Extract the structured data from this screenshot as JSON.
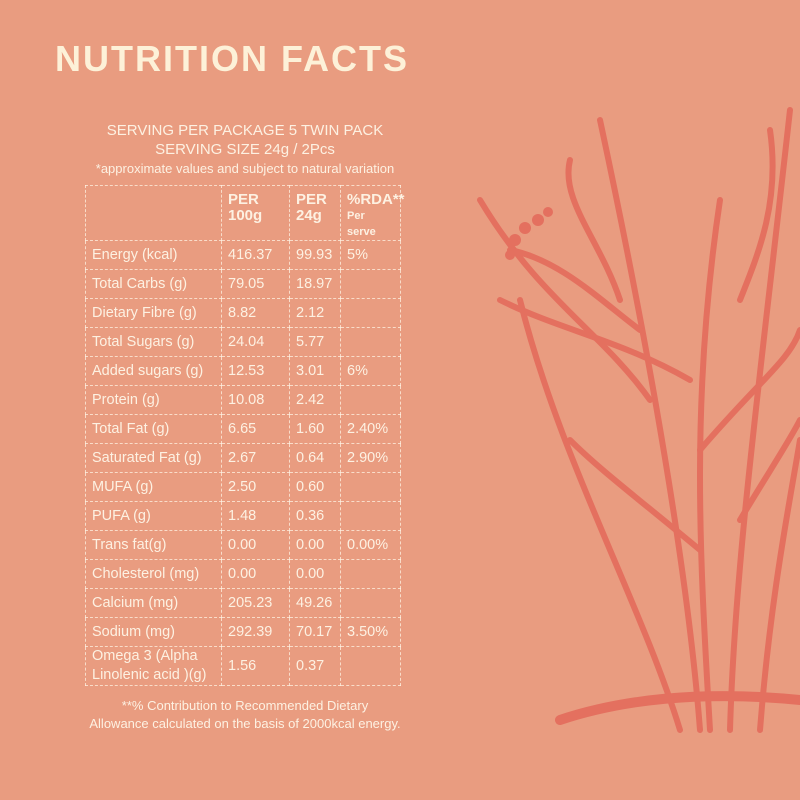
{
  "header": {
    "title": "NUTRITION FACTS",
    "serving_per_package": "SERVING PER PACKAGE 5 TWIN PACK",
    "serving_size": "SERVING SIZE 24g / 2Pcs",
    "note": "*approximate values and subject to natural variation"
  },
  "table": {
    "columns": [
      {
        "line1": "PER",
        "line2": "100g"
      },
      {
        "line1": "PER",
        "line2": "24g"
      },
      {
        "line1": "%RDA**",
        "line2": "Per serve"
      }
    ],
    "rows": [
      [
        "Energy (kcal)",
        "416.37",
        "99.93",
        "5%"
      ],
      [
        "Total Carbs (g)",
        "79.05",
        "18.97"
      ],
      [
        "Dietary Fibre (g)",
        "8.82",
        "2.12"
      ],
      [
        "Total Sugars (g)",
        "24.04",
        "5.77"
      ],
      [
        "Added sugars (g)",
        "12.53",
        "3.01",
        "6%"
      ],
      [
        "Protein (g)",
        "10.08",
        "2.42"
      ],
      [
        "Total Fat (g)",
        "6.65",
        "1.60",
        "2.40%"
      ],
      [
        "Saturated Fat (g)",
        "2.67",
        "0.64",
        "2.90%"
      ],
      [
        "MUFA (g)",
        "2.50",
        "0.60"
      ],
      [
        "PUFA (g)",
        "1.48",
        "0.36"
      ],
      [
        "Trans fat(g)",
        "0.00",
        "0.00",
        "0.00%"
      ],
      [
        "Cholesterol (mg)",
        "0.00",
        "0.00"
      ],
      [
        "Calcium (mg)",
        "205.23",
        "49.26"
      ],
      [
        "Sodium (mg)",
        "292.39",
        "70.17",
        "3.50%"
      ],
      [
        "Omega 3 (Alpha Linolenic acid )(g)",
        "1.56",
        "0.37"
      ]
    ]
  },
  "footnote": [
    "**% Contribution to Recommended Dietary",
    "Allowance calculated on the basis of 2000kcal energy."
  ]
}
